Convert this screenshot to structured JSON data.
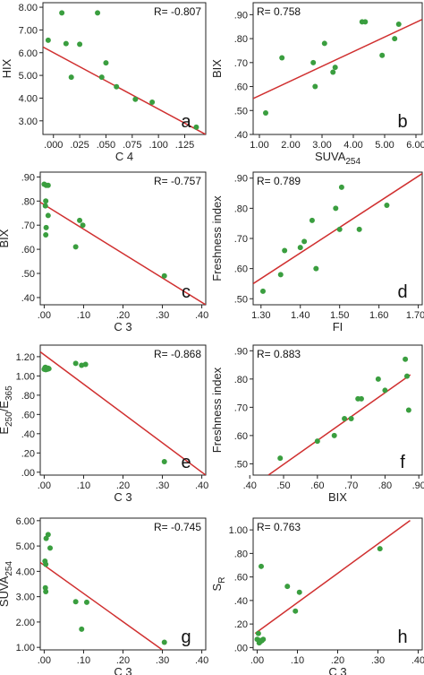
{
  "chart_data": [
    {
      "type": "scatter",
      "panel": "a",
      "r_text": "R= -0.807",
      "r_pos": "top-right",
      "ylabel": "HIX",
      "xlabel": "C 4",
      "xlim": [
        -0.01,
        0.145
      ],
      "ylim": [
        2.4,
        8.2
      ],
      "xticks": [
        0.0,
        0.025,
        0.05,
        0.075,
        0.1,
        0.125
      ],
      "xtick_labels": [
        ".000",
        ".025",
        ".050",
        ".075",
        ".100",
        ".125"
      ],
      "yticks": [
        3,
        4,
        5,
        6,
        7,
        8
      ],
      "ytick_labels": [
        "3.00",
        "4.00",
        "5.00",
        "6.00",
        "7.00",
        "8.00"
      ],
      "points": [
        [
          -0.005,
          6.55
        ],
        [
          0.008,
          7.75
        ],
        [
          0.012,
          6.4
        ],
        [
          0.017,
          4.92
        ],
        [
          0.025,
          6.37
        ],
        [
          0.042,
          7.75
        ],
        [
          0.046,
          4.92
        ],
        [
          0.05,
          5.55
        ],
        [
          0.06,
          4.5
        ],
        [
          0.078,
          3.95
        ],
        [
          0.094,
          3.82
        ],
        [
          0.136,
          2.72
        ]
      ],
      "fit": [
        [
          -0.01,
          6.25
        ],
        [
          0.145,
          2.4
        ]
      ]
    },
    {
      "type": "scatter",
      "panel": "b",
      "r_text": "R= 0.758",
      "r_pos": "top-left",
      "ylabel": "BIX",
      "xlabel": "SUVA",
      "xlabel_sub": "254",
      "xlim": [
        0.8,
        6.2
      ],
      "ylim": [
        0.4,
        0.95
      ],
      "xticks": [
        1,
        2,
        3,
        4,
        5,
        6
      ],
      "xtick_labels": [
        "1.00",
        "2.00",
        "3.00",
        "4.00",
        "5.00",
        "6.00"
      ],
      "yticks": [
        0.4,
        0.5,
        0.6,
        0.7,
        0.8,
        0.9
      ],
      "ytick_labels": [
        ".40",
        ".50",
        ".60",
        ".70",
        ".80",
        ".90"
      ],
      "points": [
        [
          1.2,
          0.49
        ],
        [
          1.72,
          0.72
        ],
        [
          2.72,
          0.7
        ],
        [
          2.78,
          0.6
        ],
        [
          3.08,
          0.78
        ],
        [
          3.35,
          0.66
        ],
        [
          3.42,
          0.68
        ],
        [
          4.28,
          0.87
        ],
        [
          4.38,
          0.87
        ],
        [
          4.92,
          0.73
        ],
        [
          5.32,
          0.8
        ],
        [
          5.45,
          0.86
        ]
      ],
      "fit": [
        [
          0.8,
          0.55
        ],
        [
          6.2,
          0.88
        ]
      ]
    },
    {
      "type": "scatter",
      "panel": "c",
      "r_text": "R= -0.757",
      "r_pos": "top-right",
      "ylabel": "BIX",
      "xlabel": "C 3",
      "xlim": [
        -0.01,
        0.41
      ],
      "ylim": [
        0.37,
        0.92
      ],
      "xticks": [
        0.0,
        0.1,
        0.2,
        0.3,
        0.4
      ],
      "xtick_labels": [
        ".00",
        ".10",
        ".20",
        ".30",
        ".40"
      ],
      "yticks": [
        0.4,
        0.5,
        0.6,
        0.7,
        0.8,
        0.9
      ],
      "ytick_labels": [
        ".40",
        ".50",
        ".60",
        ".70",
        ".80",
        ".90"
      ],
      "points": [
        [
          0.0,
          0.87
        ],
        [
          0.005,
          0.865
        ],
        [
          0.01,
          0.865
        ],
        [
          0.004,
          0.8
        ],
        [
          0.003,
          0.78
        ],
        [
          0.01,
          0.74
        ],
        [
          0.005,
          0.69
        ],
        [
          0.004,
          0.66
        ],
        [
          0.08,
          0.61
        ],
        [
          0.09,
          0.72
        ],
        [
          0.098,
          0.7
        ],
        [
          0.305,
          0.49
        ]
      ],
      "fit": [
        [
          -0.01,
          0.795
        ],
        [
          0.41,
          0.37
        ]
      ]
    },
    {
      "type": "scatter",
      "panel": "d",
      "r_text": "R= 0.789",
      "r_pos": "top-left",
      "ylabel": "Freshness index",
      "xlabel": "FI",
      "xlim": [
        1.28,
        1.71
      ],
      "ylim": [
        0.48,
        0.92
      ],
      "xticks": [
        1.3,
        1.4,
        1.5,
        1.6,
        1.7
      ],
      "xtick_labels": [
        "1.30",
        "1.40",
        "1.50",
        "1.60",
        "1.700"
      ],
      "yticks": [
        0.5,
        0.6,
        0.7,
        0.8,
        0.9
      ],
      "ytick_labels": [
        ".50",
        ".60",
        ".70",
        ".80",
        ".90"
      ],
      "points": [
        [
          1.305,
          0.525
        ],
        [
          1.35,
          0.58
        ],
        [
          1.36,
          0.66
        ],
        [
          1.4,
          0.67
        ],
        [
          1.41,
          0.69
        ],
        [
          1.43,
          0.76
        ],
        [
          1.44,
          0.6
        ],
        [
          1.49,
          0.8
        ],
        [
          1.5,
          0.73
        ],
        [
          1.505,
          0.87
        ],
        [
          1.55,
          0.73
        ],
        [
          1.62,
          0.81
        ]
      ],
      "fit": [
        [
          1.28,
          0.55
        ],
        [
          1.71,
          0.915
        ]
      ]
    },
    {
      "type": "scatter",
      "panel": "e",
      "r_text": "R= -0.868",
      "r_pos": "top-right",
      "ylabel": "E250/E365",
      "ylabel_parts": [
        "E",
        "250",
        "/E",
        "365"
      ],
      "xlabel": "C 3",
      "xlim": [
        -0.01,
        0.41
      ],
      "ylim": [
        -0.03,
        1.32
      ],
      "xticks": [
        0.0,
        0.1,
        0.2,
        0.3,
        0.4
      ],
      "xtick_labels": [
        ".00",
        ".10",
        ".20",
        ".30",
        ".40"
      ],
      "yticks": [
        0.0,
        0.2,
        0.4,
        0.6,
        0.8,
        1.0,
        1.2
      ],
      "ytick_labels": [
        ".00",
        ".20",
        ".40",
        ".60",
        ".80",
        "1.00",
        "1.20"
      ],
      "points": [
        [
          0.0,
          1.07
        ],
        [
          0.003,
          1.09
        ],
        [
          0.006,
          1.08
        ],
        [
          0.008,
          1.07
        ],
        [
          0.01,
          1.08
        ],
        [
          0.012,
          1.075
        ],
        [
          0.004,
          1.065
        ],
        [
          0.002,
          1.085
        ],
        [
          0.08,
          1.13
        ],
        [
          0.095,
          1.11
        ],
        [
          0.105,
          1.12
        ],
        [
          0.305,
          0.11
        ]
      ],
      "fit": [
        [
          -0.01,
          1.25
        ],
        [
          0.41,
          -0.03
        ]
      ]
    },
    {
      "type": "scatter",
      "panel": "f",
      "r_text": "R= 0.883",
      "r_pos": "top-left",
      "ylabel": "Freshness index",
      "xlabel": "BIX",
      "xlim": [
        0.41,
        0.91
      ],
      "ylim": [
        0.46,
        0.92
      ],
      "xticks": [
        0.4,
        0.5,
        0.6,
        0.7,
        0.8,
        0.9
      ],
      "xtick_labels": [
        ".40",
        ".50",
        ".60",
        ".70",
        ".80",
        ".90"
      ],
      "yticks": [
        0.5,
        0.6,
        0.7,
        0.8,
        0.9
      ],
      "ytick_labels": [
        ".50",
        ".60",
        ".70",
        ".80",
        ".90"
      ],
      "points": [
        [
          0.49,
          0.52
        ],
        [
          0.6,
          0.58
        ],
        [
          0.65,
          0.6
        ],
        [
          0.68,
          0.66
        ],
        [
          0.7,
          0.66
        ],
        [
          0.72,
          0.73
        ],
        [
          0.73,
          0.73
        ],
        [
          0.78,
          0.8
        ],
        [
          0.8,
          0.76
        ],
        [
          0.86,
          0.87
        ],
        [
          0.865,
          0.81
        ],
        [
          0.87,
          0.69
        ]
      ],
      "fit": [
        [
          0.455,
          0.46
        ],
        [
          0.875,
          0.815
        ]
      ]
    },
    {
      "type": "scatter",
      "panel": "g",
      "r_text": "R= -0.745",
      "r_pos": "top-right",
      "ylabel": "SUVA254",
      "ylabel_parts": [
        "SUVA",
        "254"
      ],
      "xlabel": "C 3",
      "xlim": [
        -0.01,
        0.41
      ],
      "ylim": [
        0.9,
        6.1
      ],
      "xticks": [
        0.0,
        0.1,
        0.2,
        0.3,
        0.4
      ],
      "xtick_labels": [
        ".00",
        ".10",
        ".20",
        ".30",
        ".40"
      ],
      "yticks": [
        1,
        2,
        3,
        4,
        5,
        6
      ],
      "ytick_labels": [
        "1.00",
        "2.00",
        "3.00",
        "4.00",
        "5.00",
        "6.00"
      ],
      "points": [
        [
          0.005,
          5.3
        ],
        [
          0.01,
          5.45
        ],
        [
          0.015,
          4.92
        ],
        [
          0.002,
          4.4
        ],
        [
          0.004,
          4.28
        ],
        [
          0.003,
          3.35
        ],
        [
          0.004,
          3.2
        ],
        [
          0.08,
          2.8
        ],
        [
          0.095,
          1.72
        ],
        [
          0.108,
          2.78
        ],
        [
          0.305,
          1.2
        ]
      ],
      "fit": [
        [
          -0.01,
          4.35
        ],
        [
          0.3,
          0.9
        ]
      ]
    },
    {
      "type": "scatter",
      "panel": "h",
      "r_text": "R= 0.763",
      "r_pos": "top-left",
      "ylabel": "SR",
      "ylabel_parts": [
        "S",
        "R"
      ],
      "xlabel": "C 3",
      "xlim": [
        -0.01,
        0.41
      ],
      "ylim": [
        -0.02,
        1.1
      ],
      "xticks": [
        0.0,
        0.1,
        0.2,
        0.3,
        0.4
      ],
      "xtick_labels": [
        ".00",
        ".10",
        ".20",
        ".30",
        ".40"
      ],
      "yticks": [
        0.0,
        0.2,
        0.4,
        0.6,
        0.8,
        1.0
      ],
      "ytick_labels": [
        ".00",
        ".20",
        ".40",
        ".60",
        ".80",
        "1.00"
      ],
      "points": [
        [
          0.0,
          0.07
        ],
        [
          0.003,
          0.12
        ],
        [
          0.005,
          0.04
        ],
        [
          0.006,
          0.06
        ],
        [
          0.008,
          0.05
        ],
        [
          0.012,
          0.06
        ],
        [
          0.015,
          0.07
        ],
        [
          0.01,
          0.69
        ],
        [
          0.075,
          0.52
        ],
        [
          0.095,
          0.31
        ],
        [
          0.105,
          0.47
        ],
        [
          0.305,
          0.84
        ]
      ],
      "fit": [
        [
          -0.005,
          0.12
        ],
        [
          0.38,
          1.08
        ]
      ]
    }
  ],
  "colors": {
    "point": "#3a9e3f",
    "fit_line": "#d03030",
    "axis": "#222222"
  }
}
